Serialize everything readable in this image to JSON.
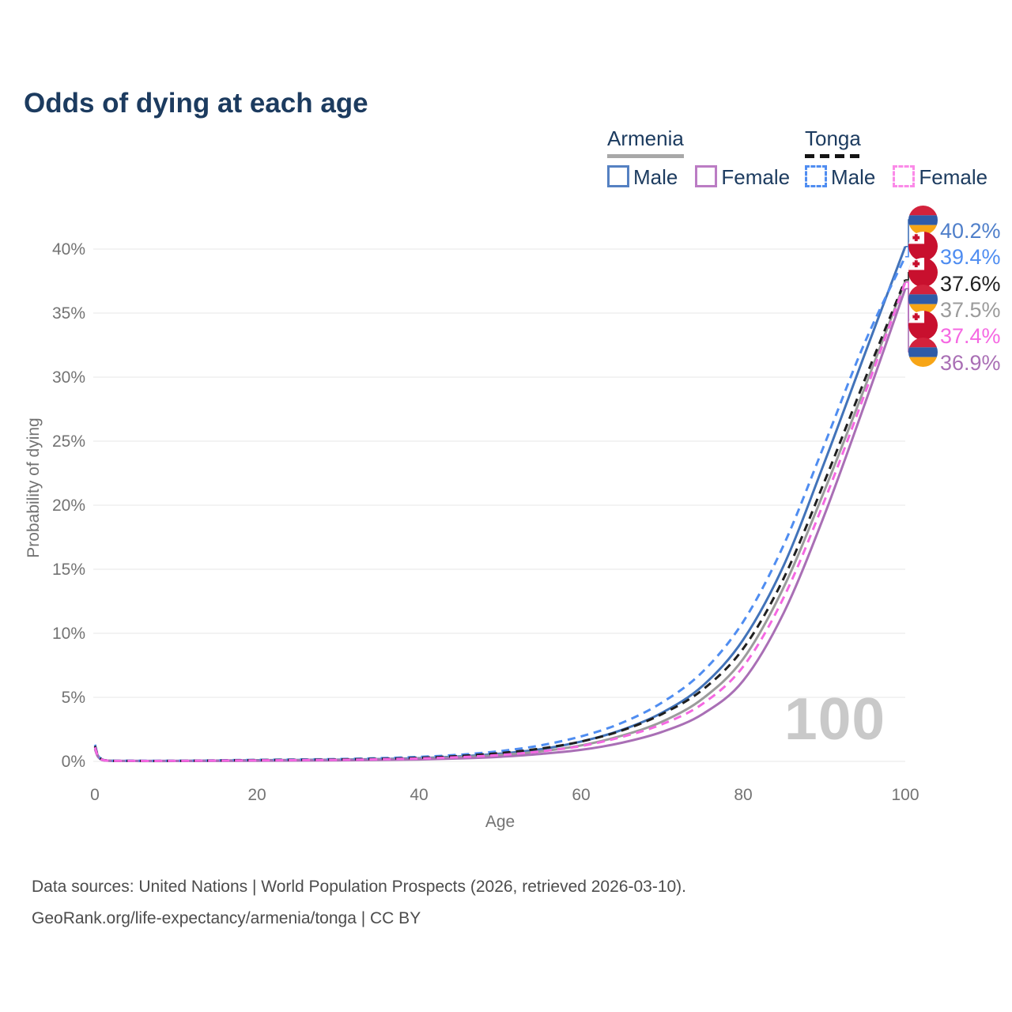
{
  "title": "Odds of dying at each age",
  "legend": {
    "armenia": {
      "label": "Armenia",
      "male": "Male",
      "female": "Female",
      "male_color": "#5581c2",
      "female_color": "#bb7cc4",
      "underline_color": "#a8a8a8",
      "underline_style": "solid"
    },
    "tonga": {
      "label": "Tonga",
      "male": "Male",
      "female": "Female",
      "male_color": "#4f8df1",
      "female_color": "#fb8ae8",
      "underline_color": "#141414",
      "underline_style": "dashed"
    }
  },
  "age_counter": "100",
  "footer": {
    "line1": "Data sources: United Nations | World Population Prospects (2026, retrieved 2026-03-10).",
    "line2": "GeoRank.org/life-expectancy/armenia/tonga | CC BY"
  },
  "chart_data": {
    "type": "line",
    "title": "Odds of dying at each age",
    "xlabel": "Age",
    "ylabel": "Probability of dying",
    "xlim": [
      0,
      100
    ],
    "ylim": [
      0,
      40
    ],
    "grid": true,
    "xticks": [
      0,
      20,
      40,
      60,
      80,
      100
    ],
    "yticks": [
      0,
      5,
      10,
      15,
      20,
      25,
      30,
      35,
      40
    ],
    "ytick_suffix": "%",
    "ages": [
      0,
      1,
      5,
      10,
      15,
      20,
      25,
      30,
      35,
      40,
      45,
      50,
      55,
      60,
      65,
      70,
      75,
      80,
      85,
      90,
      95,
      100
    ],
    "series": [
      {
        "id": "armenia-male",
        "name": "Armenia Male",
        "country": "armenia",
        "sex": "male",
        "line": "solid",
        "color": "#4273b9",
        "label_color": "#4f7fca",
        "end_label": "40.2%",
        "values": [
          1.15,
          0.1,
          0.04,
          0.04,
          0.06,
          0.09,
          0.11,
          0.13,
          0.18,
          0.25,
          0.38,
          0.6,
          0.95,
          1.55,
          2.45,
          3.8,
          5.9,
          9.5,
          15.3,
          23.3,
          31.8,
          40.2
        ]
      },
      {
        "id": "tonga-male",
        "name": "Tonga Male",
        "country": "tonga",
        "sex": "male",
        "line": "dashed",
        "color": "#4f8df1",
        "label_color": "#4f8df1",
        "end_label": "39.4%",
        "values": [
          1.3,
          0.12,
          0.05,
          0.05,
          0.08,
          0.12,
          0.15,
          0.18,
          0.25,
          0.35,
          0.52,
          0.8,
          1.25,
          1.95,
          3.0,
          4.6,
          7.0,
          10.9,
          16.9,
          24.7,
          32.7,
          39.4
        ]
      },
      {
        "id": "tonga-both",
        "name": "Tonga Both sexes",
        "country": "tonga",
        "sex": "both",
        "line": "dashed",
        "color": "#1f1f1f",
        "label_color": "#1f1f1f",
        "end_label": "37.6%",
        "values": [
          1.2,
          0.11,
          0.04,
          0.04,
          0.07,
          0.1,
          0.12,
          0.15,
          0.2,
          0.28,
          0.42,
          0.65,
          1.0,
          1.55,
          2.4,
          3.7,
          5.6,
          8.8,
          14.3,
          21.8,
          29.8,
          37.6
        ]
      },
      {
        "id": "armenia-both",
        "name": "Armenia Both sexes",
        "country": "armenia",
        "sex": "both",
        "line": "solid",
        "color": "#9b9b9b",
        "label_color": "#9b9b9b",
        "end_label": "37.5%",
        "values": [
          1.0,
          0.09,
          0.03,
          0.03,
          0.05,
          0.07,
          0.09,
          0.11,
          0.15,
          0.21,
          0.32,
          0.5,
          0.78,
          1.25,
          2.0,
          3.1,
          4.9,
          8.0,
          13.6,
          21.1,
          29.2,
          37.5
        ]
      },
      {
        "id": "tonga-female",
        "name": "Tonga Female",
        "country": "tonga",
        "sex": "female",
        "line": "dashed",
        "color": "#f568e2",
        "label_color": "#f568e2",
        "end_label": "37.4%",
        "values": [
          1.1,
          0.1,
          0.04,
          0.04,
          0.06,
          0.08,
          0.1,
          0.12,
          0.16,
          0.22,
          0.33,
          0.5,
          0.78,
          1.2,
          1.9,
          2.9,
          4.5,
          7.4,
          12.8,
          20.3,
          28.7,
          37.4
        ]
      },
      {
        "id": "armenia-female",
        "name": "Armenia Female",
        "country": "armenia",
        "sex": "female",
        "line": "solid",
        "color": "#a96fb5",
        "label_color": "#a96fb5",
        "end_label": "36.9%",
        "values": [
          0.95,
          0.08,
          0.03,
          0.03,
          0.04,
          0.05,
          0.06,
          0.08,
          0.11,
          0.15,
          0.23,
          0.36,
          0.58,
          0.9,
          1.45,
          2.3,
          3.7,
          6.3,
          11.6,
          19.2,
          27.9,
          36.9
        ]
      }
    ],
    "flag_colors": {
      "armenia": {
        "red": "#D3223C",
        "blue": "#2F5BA7",
        "orange": "#F7A516"
      },
      "tonga": {
        "red": "#C8102E",
        "white": "#FFFFFF"
      }
    },
    "legend_position": "top-right",
    "gridline_color": "#ececec",
    "tick_color": "#737373"
  }
}
